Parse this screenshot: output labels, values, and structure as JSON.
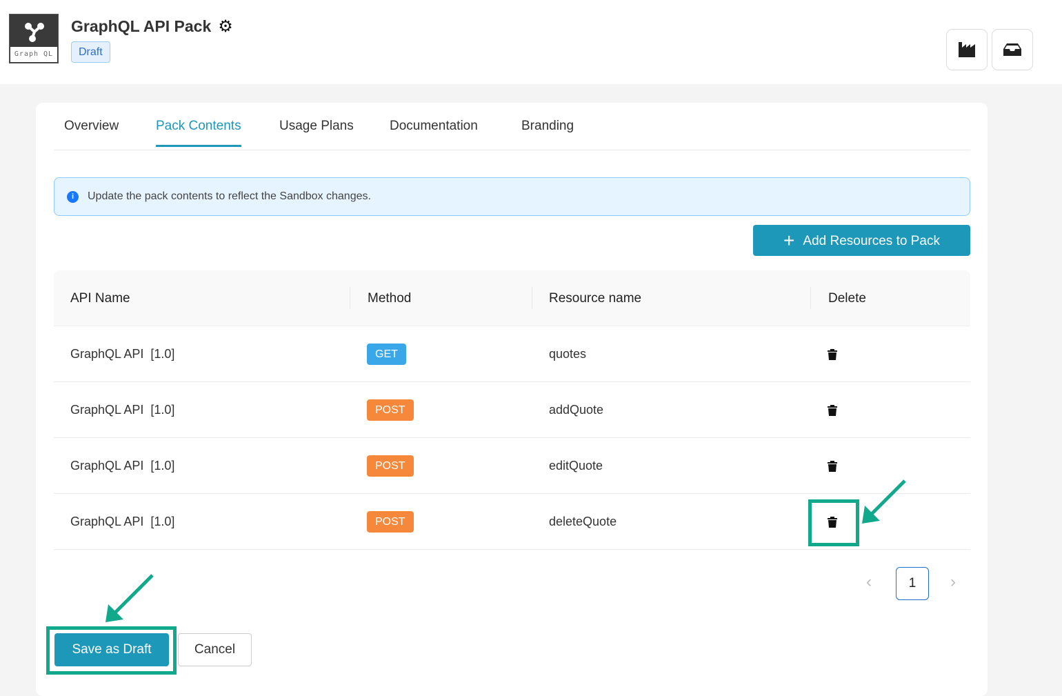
{
  "header": {
    "title": "GraphQL API Pack",
    "status": "Draft",
    "logo_text": "Graph QL"
  },
  "tabs": [
    "Overview",
    "Pack Contents",
    "Usage Plans",
    "Documentation",
    "Branding"
  ],
  "alert": "Update the pack contents to reflect the Sandbox changes.",
  "add_button": "Add Resources to Pack",
  "table": {
    "headers": [
      "API Name",
      "Method",
      "Resource name",
      "Delete"
    ],
    "rows": [
      {
        "api": "GraphQL API  [1.0]",
        "method": "GET",
        "resource": "quotes"
      },
      {
        "api": "GraphQL API  [1.0]",
        "method": "POST",
        "resource": "addQuote"
      },
      {
        "api": "GraphQL API  [1.0]",
        "method": "POST",
        "resource": "editQuote"
      },
      {
        "api": "GraphQL API  [1.0]",
        "method": "POST",
        "resource": "deleteQuote"
      }
    ]
  },
  "pagination": {
    "current": "1"
  },
  "footer": {
    "save": "Save as Draft",
    "cancel": "Cancel"
  },
  "colors": {
    "accent": "#1e98b9",
    "get": "#3aa8e8",
    "post": "#f5883a",
    "highlight": "#12a88c"
  }
}
